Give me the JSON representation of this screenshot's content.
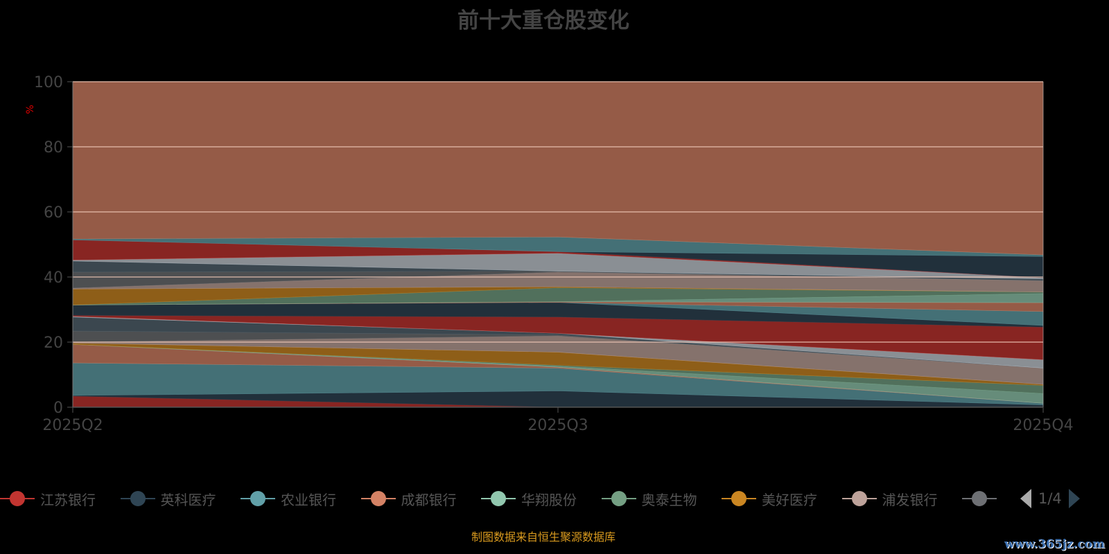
{
  "title": "前十大重仓股变化",
  "footer": "制图数据来自恒生聚源数据库",
  "watermark": "www.365jz.com",
  "pager": {
    "text": "1/4"
  },
  "legend": [
    {
      "name": "江苏银行",
      "color": "#c23531"
    },
    {
      "name": "英科医疗",
      "color": "#2f4554"
    },
    {
      "name": "农业银行",
      "color": "#61a0a8"
    },
    {
      "name": "成都银行",
      "color": "#d48265"
    },
    {
      "name": "华翔股份",
      "color": "#91c7ae"
    },
    {
      "name": "奥泰生物",
      "color": "#749f83"
    },
    {
      "name": "美好医疗",
      "color": "#ca8622"
    },
    {
      "name": "浦发银行",
      "color": "#bda29a"
    },
    {
      "name": "",
      "color": "#6e7074"
    }
  ],
  "chart_data": {
    "type": "area",
    "stacked": true,
    "title": "前十大重仓股变化",
    "ylabel": "%",
    "xlabel": "",
    "categories": [
      "2025Q2",
      "2025Q3",
      "2025Q4"
    ],
    "ylim": [
      0,
      100
    ],
    "yticks": [
      "0",
      "20",
      "40",
      "60",
      "80",
      "100"
    ],
    "grid": true,
    "legend_position": "bottom",
    "palette": [
      "#c23531",
      "#2f4554",
      "#61a0a8",
      "#d48265",
      "#91c7ae",
      "#749f83",
      "#ca8622",
      "#bda29a",
      "#6e7074",
      "#546570",
      "#c4ccd3"
    ],
    "series": [
      {
        "name": "江苏银行",
        "values": [
          3.4,
          0,
          0
        ]
      },
      {
        "name": "英科医疗",
        "values": [
          0.2,
          5,
          0.7
        ]
      },
      {
        "name": "农业银行",
        "values": [
          10,
          7,
          0.5
        ]
      },
      {
        "name": "成都银行",
        "values": [
          5.7,
          0.3,
          0
        ]
      },
      {
        "name": "华翔股份",
        "values": [
          0,
          0.3,
          3
        ]
      },
      {
        "name": "奥泰生物",
        "values": [
          0,
          0.3,
          2.5
        ]
      },
      {
        "name": "美好医疗",
        "values": [
          0.4,
          4,
          0.3
        ]
      },
      {
        "name": "浦发银行",
        "values": [
          0.3,
          5,
          5
        ]
      },
      {
        "name": "",
        "values": [
          3.4,
          0.3,
          0
        ]
      },
      {
        "name": "",
        "values": [
          4.3,
          0.5,
          0
        ]
      },
      {
        "name": "",
        "values": [
          0.2,
          0,
          2.6
        ]
      },
      {
        "name": "",
        "values": [
          0.3,
          5,
          10
        ]
      },
      {
        "name": "",
        "values": [
          3.2,
          4.5,
          0.5
        ]
      },
      {
        "name": "",
        "values": [
          0,
          0,
          4.3
        ]
      },
      {
        "name": "",
        "values": [
          0,
          0.2,
          2.7
        ]
      },
      {
        "name": "",
        "values": [
          0,
          0,
          2.8
        ]
      },
      {
        "name": "",
        "values": [
          0,
          4.3,
          0.5
        ]
      },
      {
        "name": "",
        "values": [
          4.9,
          0.3,
          0
        ]
      },
      {
        "name": "",
        "values": [
          0.3,
          4.5,
          3.5
        ]
      },
      {
        "name": "",
        "values": [
          4.9,
          0.3,
          0
        ]
      },
      {
        "name": "",
        "values": [
          3.4,
          0,
          0.5
        ]
      },
      {
        "name": "",
        "values": [
          0.3,
          5.5,
          0.4
        ]
      },
      {
        "name": "",
        "values": [
          6.2,
          0.5,
          0
        ]
      },
      {
        "name": "",
        "values": [
          0,
          0,
          6.5
        ]
      },
      {
        "name": "",
        "values": [
          0.3,
          4.5,
          0.5
        ]
      },
      {
        "name": "",
        "values": [
          48.3,
          47.7,
          53.2
        ]
      }
    ]
  }
}
